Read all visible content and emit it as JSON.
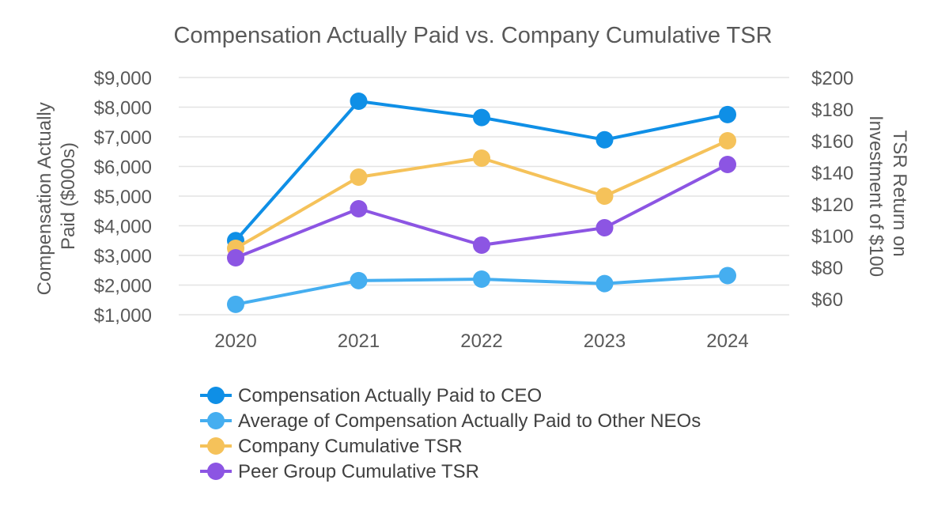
{
  "chart_data": {
    "type": "line",
    "title": "Compensation Actually Paid vs. Company Cumulative TSR",
    "categories": [
      "2020",
      "2021",
      "2022",
      "2023",
      "2024"
    ],
    "y_left": {
      "label": "Compensation Actually Paid ($000s)",
      "label_lines": [
        "Compensation Actually",
        "Paid ($000s)"
      ],
      "ylim": [
        1000,
        9000
      ],
      "ticks": [
        1000,
        2000,
        3000,
        4000,
        5000,
        6000,
        7000,
        8000,
        9000
      ],
      "tick_labels": [
        "$1,000",
        "$2,000",
        "$3,000",
        "$4,000",
        "$5,000",
        "$6,000",
        "$7,000",
        "$8,000",
        "$9,000"
      ]
    },
    "y_right": {
      "label": "TSR Return on Investment of $100",
      "label_lines": [
        "TSR Return on",
        "Investment of $100"
      ],
      "ylim": [
        60,
        200
      ],
      "ticks": [
        60,
        80,
        100,
        120,
        140,
        160,
        180,
        200
      ],
      "tick_labels": [
        "$60",
        "$80",
        "$100",
        "$120",
        "$140",
        "$160",
        "$180",
        "$200"
      ]
    },
    "grid": true,
    "legend_position": "bottom",
    "series": [
      {
        "name": "Compensation Actually Paid to CEO",
        "axis": "left",
        "color": "#0f8fe6",
        "values": [
          3500,
          8200,
          7650,
          6900,
          7750
        ]
      },
      {
        "name": "Average of Compensation Actually Paid to Other NEOs",
        "axis": "left",
        "color": "#45aef0",
        "values": [
          1350,
          2150,
          2200,
          2050,
          2320
        ]
      },
      {
        "name": "Company Cumulative TSR",
        "axis": "right",
        "color": "#f5c25a",
        "values": [
          92,
          137,
          149,
          125,
          160
        ]
      },
      {
        "name": "Peer Group Cumulative TSR",
        "axis": "right",
        "color": "#8c55e3",
        "values": [
          86,
          117,
          94,
          105,
          145
        ]
      }
    ]
  }
}
